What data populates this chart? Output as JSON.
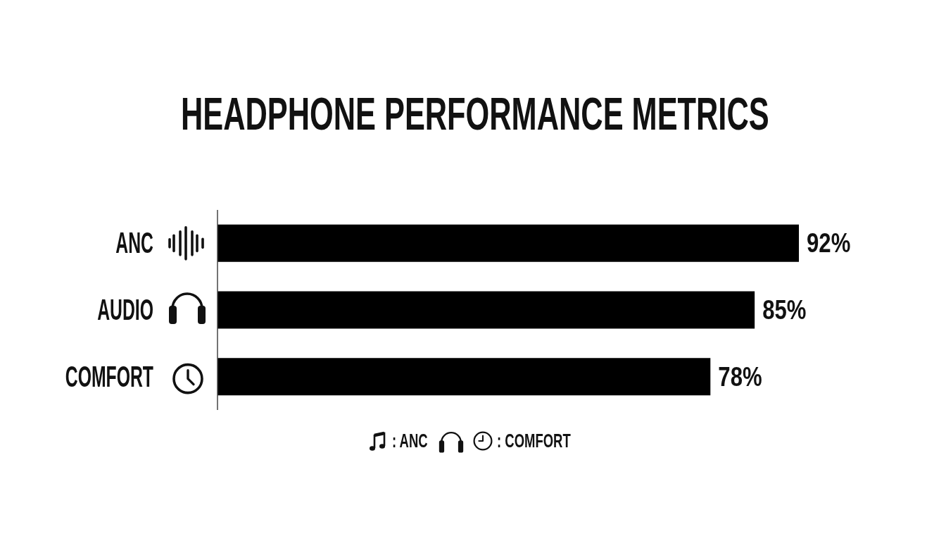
{
  "chart_data": {
    "type": "bar",
    "orientation": "horizontal",
    "title": "HEADPHONE PERFORMANCE METRICS",
    "categories": [
      "ANC",
      "AUDIO",
      "COMFORT"
    ],
    "values": [
      92,
      85,
      78
    ],
    "value_labels": [
      "92%",
      "85%",
      "78%"
    ],
    "color": "#000000",
    "tick_labels": "y",
    "annotations": [
      ": ANC",
      ": COMFORT"
    ]
  }
}
